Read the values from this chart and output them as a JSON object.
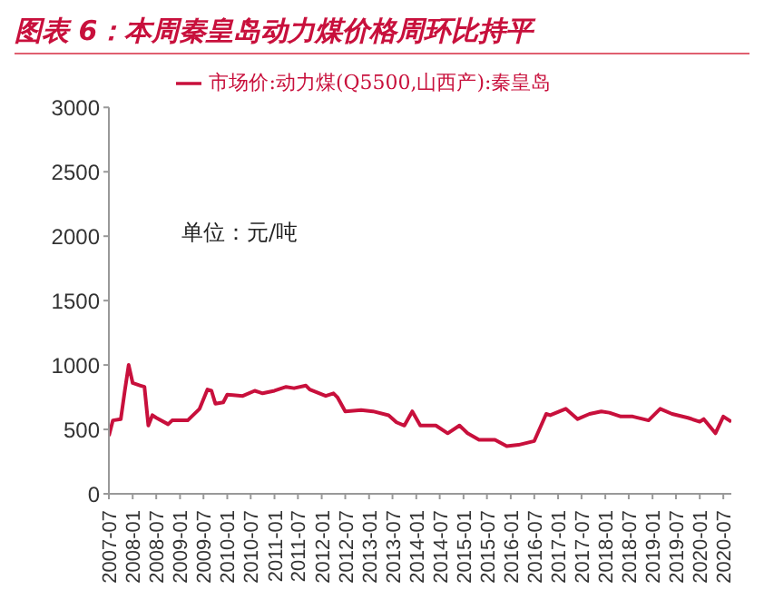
{
  "chart_data": {
    "type": "line",
    "title": "图表 6：本周秦皇岛动力煤价格周环比持平",
    "annotations": [
      "单位：元/吨"
    ],
    "x": [
      "2007-07",
      "2007-08",
      "2007-10",
      "2007-11",
      "2007-12",
      "2008-01",
      "2008-03",
      "2008-04",
      "2008-05",
      "2008-06",
      "2008-07",
      "2008-10",
      "2008-11",
      "2009-03",
      "2009-06",
      "2009-08",
      "2009-09",
      "2009-10",
      "2009-12",
      "2010-01",
      "2010-05",
      "2010-08",
      "2010-09",
      "2010-10",
      "2011-01",
      "2011-04",
      "2011-06",
      "2011-09",
      "2011-10",
      "2012-02",
      "2012-04",
      "2012-05",
      "2012-07",
      "2012-11",
      "2013-02",
      "2013-06",
      "2013-08",
      "2013-10",
      "2013-12",
      "2014-02",
      "2014-06",
      "2014-09",
      "2014-12",
      "2015-02",
      "2015-05",
      "2015-09",
      "2015-12",
      "2016-03",
      "2016-07",
      "2016-10",
      "2016-11",
      "2017-03",
      "2017-06",
      "2017-09",
      "2017-12",
      "2018-02",
      "2018-05",
      "2018-08",
      "2018-12",
      "2019-03",
      "2019-06",
      "2019-10",
      "2020-01",
      "2020-02",
      "2020-05",
      "2020-07",
      "2020-09"
    ],
    "series": [
      {
        "name": "市场价:动力煤(Q5500,山西产):秦皇岛",
        "color": "#c8103c",
        "values": [
          450,
          570,
          580,
          800,
          1000,
          860,
          840,
          830,
          530,
          610,
          590,
          540,
          570,
          570,
          660,
          810,
          800,
          700,
          710,
          770,
          760,
          800,
          790,
          780,
          800,
          830,
          820,
          840,
          810,
          760,
          780,
          750,
          640,
          650,
          640,
          610,
          555,
          530,
          640,
          530,
          530,
          470,
          530,
          470,
          420,
          420,
          370,
          380,
          410,
          620,
          610,
          660,
          580,
          620,
          640,
          630,
          600,
          600,
          570,
          660,
          620,
          590,
          560,
          580,
          470,
          600,
          560
        ]
      }
    ],
    "xlim": [
      "2007-07",
      "2020-09"
    ],
    "xticks": [
      "2007-07",
      "2008-01",
      "2008-07",
      "2009-01",
      "2009-07",
      "2010-01",
      "2010-07",
      "2011-01",
      "2011-07",
      "2012-01",
      "2012-07",
      "2013-01",
      "2013-07",
      "2014-01",
      "2014-07",
      "2015-01",
      "2015-07",
      "2016-01",
      "2016-07",
      "2017-01",
      "2017-07",
      "2018-01",
      "2018-07",
      "2019-01",
      "2019-07",
      "2020-01",
      "2020-07"
    ],
    "ylim": [
      0,
      3000
    ],
    "yticks": [
      0,
      500,
      1000,
      1500,
      2000,
      2500,
      3000
    ],
    "grid": false,
    "legend": "top",
    "marker": "none",
    "line_style": "solid"
  }
}
